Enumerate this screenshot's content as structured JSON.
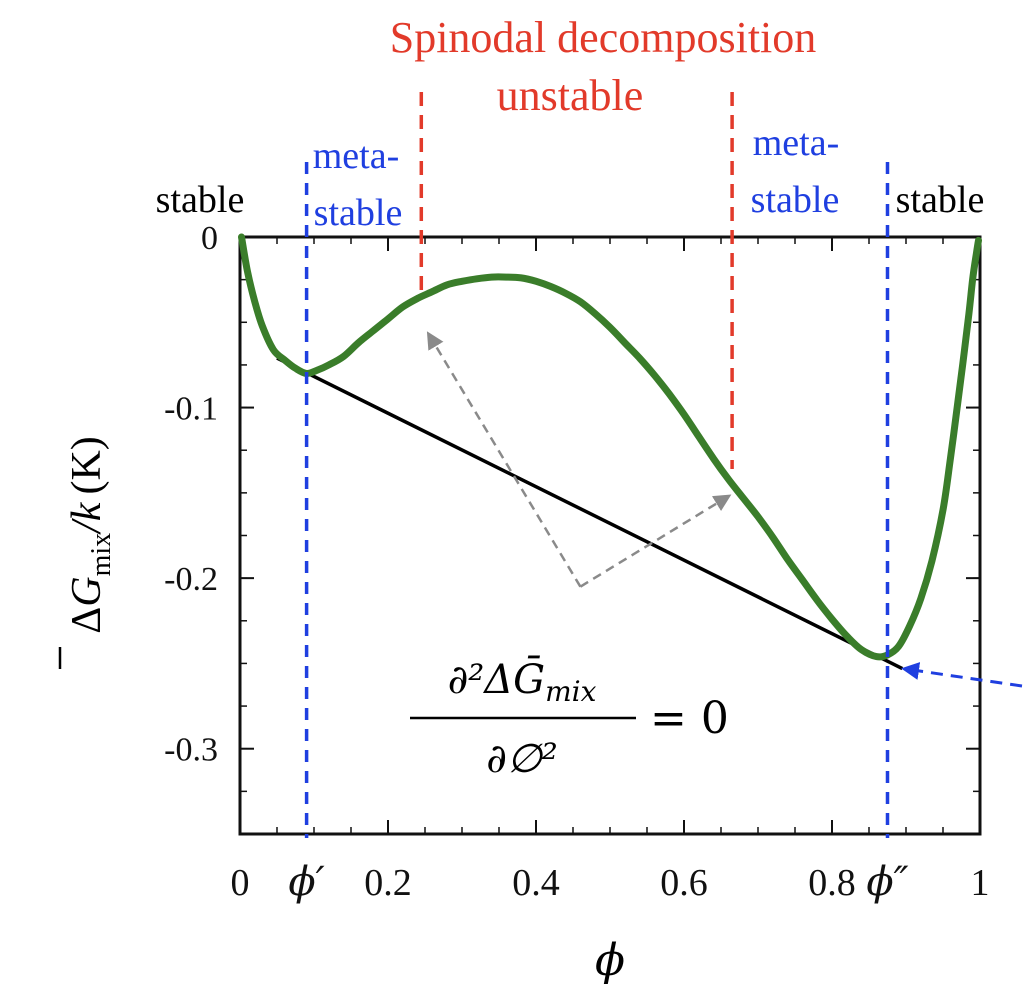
{
  "chart_data": {
    "type": "line",
    "xlim": [
      0,
      1
    ],
    "ylim": [
      -0.35,
      0
    ],
    "x_ticks": [
      {
        "value": 0,
        "label": "0"
      },
      {
        "value": 0.2,
        "label": "0.2"
      },
      {
        "value": 0.4,
        "label": "0.4"
      },
      {
        "value": 0.6,
        "label": "0.6"
      },
      {
        "value": 0.8,
        "label": "0.8"
      },
      {
        "value": 1,
        "label": "1"
      }
    ],
    "y_ticks": [
      {
        "value": 0,
        "label": "0"
      },
      {
        "value": -0.1,
        "label": "-0.1"
      },
      {
        "value": -0.2,
        "label": "-0.2"
      },
      {
        "value": -0.3,
        "label": "-0.3"
      }
    ],
    "xlabel": "ϕ",
    "ylabel": {
      "prefix": "Δ",
      "symbol": "G",
      "subscript": "mix",
      "divisor": "/k",
      "unit": "(K)"
    },
    "colors": {
      "curve": "#3a7d2a",
      "tangent": "#000000",
      "binodal": "#1f3fe0",
      "spinodal": "#e23a2a",
      "arrow": "#8a8a8a"
    },
    "series": [
      {
        "name": "ΔG_mix/k",
        "x": [
          0.002,
          0.01,
          0.02,
          0.03,
          0.045,
          0.06,
          0.075,
          0.09,
          0.105,
          0.12,
          0.14,
          0.16,
          0.18,
          0.2,
          0.22,
          0.24,
          0.26,
          0.28,
          0.3,
          0.32,
          0.34,
          0.36,
          0.38,
          0.4,
          0.42,
          0.44,
          0.46,
          0.48,
          0.5,
          0.52,
          0.54,
          0.56,
          0.58,
          0.6,
          0.62,
          0.64,
          0.66,
          0.68,
          0.7,
          0.72,
          0.74,
          0.76,
          0.78,
          0.8,
          0.82,
          0.84,
          0.86,
          0.875,
          0.89,
          0.905,
          0.92,
          0.935,
          0.95,
          0.96,
          0.97,
          0.978,
          0.985,
          0.99,
          0.995,
          0.998
        ],
        "y": [
          0.0,
          -0.02,
          -0.038,
          -0.052,
          -0.066,
          -0.072,
          -0.077,
          -0.08,
          -0.078,
          -0.075,
          -0.07,
          -0.062,
          -0.055,
          -0.048,
          -0.041,
          -0.036,
          -0.032,
          -0.028,
          -0.026,
          -0.0245,
          -0.0235,
          -0.0235,
          -0.024,
          -0.026,
          -0.029,
          -0.033,
          -0.038,
          -0.045,
          -0.053,
          -0.062,
          -0.071,
          -0.081,
          -0.092,
          -0.104,
          -0.117,
          -0.13,
          -0.142,
          -0.153,
          -0.164,
          -0.176,
          -0.189,
          -0.201,
          -0.213,
          -0.224,
          -0.234,
          -0.242,
          -0.246,
          -0.245,
          -0.24,
          -0.228,
          -0.212,
          -0.19,
          -0.16,
          -0.13,
          -0.097,
          -0.07,
          -0.045,
          -0.025,
          -0.01,
          -0.002
        ]
      }
    ],
    "tangent_line": {
      "x": [
        0.05,
        0.895
      ],
      "y": [
        -0.071,
        -0.253
      ]
    },
    "binodal_lines": [
      {
        "x": 0.09,
        "label": "ϕ′"
      },
      {
        "x": 0.875,
        "label": "ϕ″"
      }
    ],
    "spinodal_lines": [
      {
        "x": 0.245,
        "y_top": 0,
        "y_bottom": -0.035
      },
      {
        "x": 0.665,
        "y_top": 0,
        "y_bottom": -0.136
      }
    ],
    "arrows": [
      {
        "from": [
          0.46,
          -0.205
        ],
        "to": [
          0.255,
          -0.057
        ]
      },
      {
        "from": [
          0.46,
          -0.205
        ],
        "to": [
          0.66,
          -0.152
        ]
      }
    ],
    "pointer_arrow": {
      "target": [
        0.89,
        -0.252
      ]
    },
    "title": "Spinodal decomposition",
    "subtitle": "unstable",
    "region_labels": {
      "stable_left": "stable",
      "stable_right": "stable",
      "meta_left_line1": "meta-",
      "meta_left_line2": "stable",
      "meta_right_line1": "meta-",
      "meta_right_line2": "stable"
    },
    "equation": {
      "numerator": "∂²ΔḠ",
      "numerator_sub": "mix",
      "denominator": "∂∅²",
      "rhs": "= 0"
    }
  }
}
